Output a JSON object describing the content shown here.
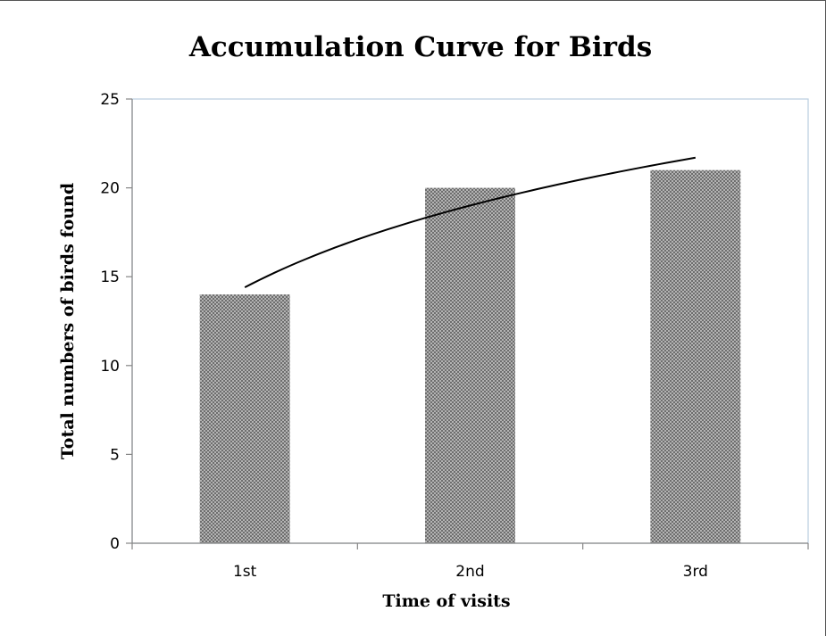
{
  "chart_data": {
    "type": "bar",
    "title": "Accumulation Curve for Birds",
    "xlabel": "Time of visits",
    "ylabel": "Total numbers of birds found",
    "categories": [
      "1st",
      "2nd",
      "3rd"
    ],
    "series": [
      {
        "values": [
          14,
          20,
          21
        ]
      }
    ],
    "trendline": {
      "type": "logarithmic",
      "values": [
        14.4,
        19.0,
        21.7
      ]
    },
    "ylim": [
      0,
      25
    ],
    "yticks": [
      "0",
      "5",
      "10",
      "15",
      "20",
      "25"
    ],
    "grid": false,
    "legend": "none",
    "colors": {
      "bar": "#a9a9a9",
      "bar_pattern": "#6e6e6e",
      "trendline": "#000000",
      "plot_border": "#b9cde0",
      "axis": "#868686"
    }
  }
}
